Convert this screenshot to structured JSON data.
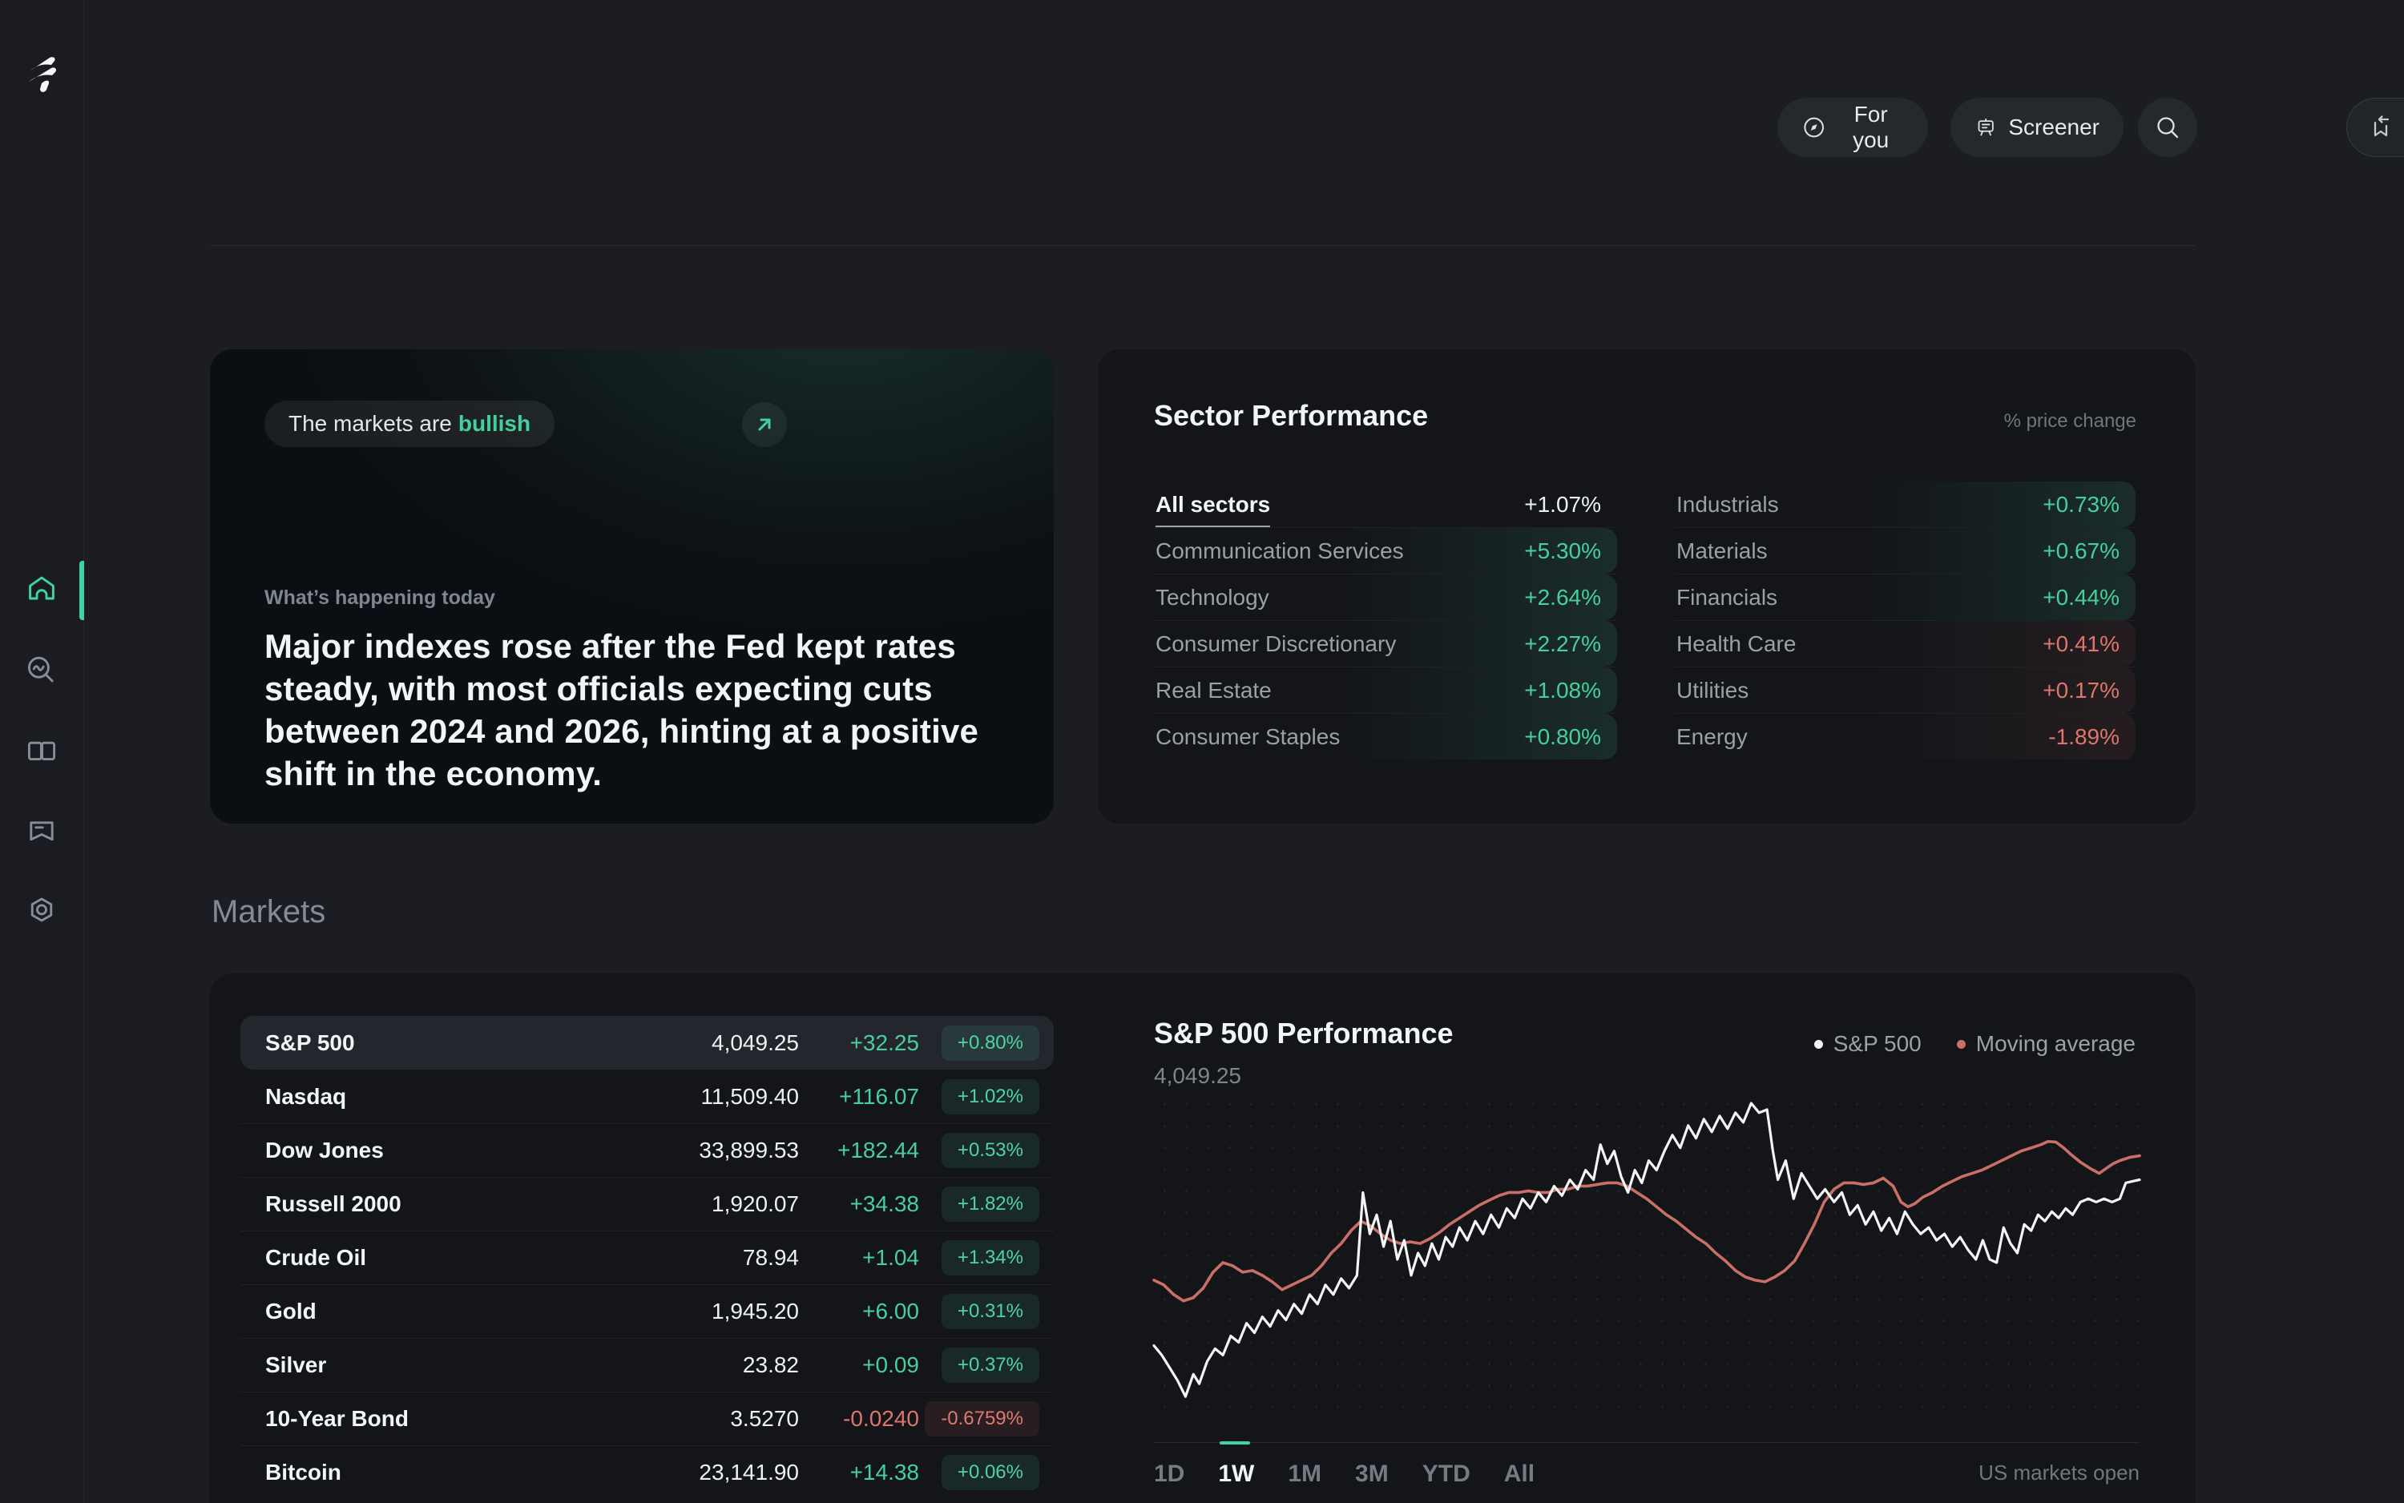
{
  "colors": {
    "green": "#46cf9f",
    "red": "#de756c",
    "accent_bar": "#3ed6a0",
    "sp500_line": "#f2f4f6",
    "moving_avg_line": "#c96f66",
    "page_bg": "#1b1d22",
    "card_bg": "#131519"
  },
  "icons": [
    "brand-logo",
    "home-icon",
    "explore-icon",
    "book-icon",
    "flag-icon",
    "nut-icon",
    "compass-icon",
    "screener-board-icon",
    "search-icon",
    "bookmark-arrow-icon",
    "arrow-up-right-icon"
  ],
  "header": {
    "for_you": "For you",
    "screener": "Screener"
  },
  "hero": {
    "pill_prefix": "The markets are",
    "pill_highlight": "bullish",
    "kicker": "What’s happening today",
    "headline_lines": [
      "Major indexes rose after the Fed kept rates steady,",
      "with most officials expecting cuts between 2024",
      "and 2026, hinting at a positive shift in the economy."
    ]
  },
  "sector_performance": {
    "title": "Sector Performance",
    "note": "% price change",
    "all": {
      "label": "All sectors",
      "value": "+1.07%",
      "color": "white"
    },
    "left": [
      {
        "label": "Communication Services",
        "value": "+5.30%",
        "color": "green"
      },
      {
        "label": "Technology",
        "value": "+2.64%",
        "color": "green"
      },
      {
        "label": "Consumer Discretionary",
        "value": "+2.27%",
        "color": "green"
      },
      {
        "label": "Real Estate",
        "value": "+1.08%",
        "color": "green"
      },
      {
        "label": "Consumer Staples",
        "value": "+0.80%",
        "color": "green"
      }
    ],
    "right": [
      {
        "label": "Industrials",
        "value": "+0.73%",
        "color": "green"
      },
      {
        "label": "Materials",
        "value": "+0.67%",
        "color": "green"
      },
      {
        "label": "Financials",
        "value": "+0.44%",
        "color": "green"
      },
      {
        "label": "Health Care",
        "value": "+0.41%",
        "color": "red"
      },
      {
        "label": "Utilities",
        "value": "+0.17%",
        "color": "red"
      },
      {
        "label": "Energy",
        "value": "-1.89%",
        "color": "red"
      }
    ]
  },
  "markets": {
    "title": "Markets",
    "rows": [
      {
        "name": "S&P 500",
        "value": "4,049.25",
        "change": "+32.25",
        "badge": "+0.80%",
        "color": "green",
        "selected": true
      },
      {
        "name": "Nasdaq",
        "value": "11,509.40",
        "change": "+116.07",
        "badge": "+1.02%",
        "color": "green",
        "selected": false
      },
      {
        "name": "Dow Jones",
        "value": "33,899.53",
        "change": "+182.44",
        "badge": "+0.53%",
        "color": "green",
        "selected": false
      },
      {
        "name": "Russell 2000",
        "value": "1,920.07",
        "change": "+34.38",
        "badge": "+1.82%",
        "color": "green",
        "selected": false
      },
      {
        "name": "Crude Oil",
        "value": "78.94",
        "change": "+1.04",
        "badge": "+1.34%",
        "color": "green",
        "selected": false
      },
      {
        "name": "Gold",
        "value": "1,945.20",
        "change": "+6.00",
        "badge": "+0.31%",
        "color": "green",
        "selected": false
      },
      {
        "name": "Silver",
        "value": "23.82",
        "change": "+0.09",
        "badge": "+0.37%",
        "color": "green",
        "selected": false
      },
      {
        "name": "10-Year Bond",
        "value": "3.5270",
        "change": "-0.0240",
        "badge": "-0.6759%",
        "color": "red",
        "selected": false
      },
      {
        "name": "Bitcoin",
        "value": "23,141.90",
        "change": "+14.38",
        "badge": "+0.06%",
        "color": "green",
        "selected": false
      }
    ]
  },
  "chart": {
    "title": "S&P 500 Performance",
    "value": "4,049.25",
    "legend": [
      {
        "label": "S&P 500",
        "color": "#f2f4f6"
      },
      {
        "label": "Moving average",
        "color": "#c97168"
      }
    ],
    "ranges": [
      "1D",
      "1W",
      "1M",
      "3M",
      "YTD",
      "All"
    ],
    "active_range": "1W",
    "status": "US markets open"
  },
  "chart_data": {
    "type": "line",
    "title": "S&P 500 Performance",
    "current_value": 4049.25,
    "x_axis": "time (1W range)",
    "y_axis": "index level (unlabeled)",
    "grid": "dotted",
    "legend_position": "top-right",
    "series": [
      {
        "name": "Moving average",
        "color": "#c96f66",
        "width": 3.6,
        "points": [
          [
            0,
            58.5
          ],
          [
            1,
            60
          ],
          [
            2,
            63
          ],
          [
            3,
            65
          ],
          [
            4,
            64
          ],
          [
            5,
            61
          ],
          [
            6,
            56
          ],
          [
            7,
            53
          ],
          [
            8,
            54
          ],
          [
            9,
            56
          ],
          [
            10,
            55.5
          ],
          [
            11,
            57
          ],
          [
            12,
            59
          ],
          [
            13,
            61.5
          ],
          [
            14,
            60
          ],
          [
            15,
            58.5
          ],
          [
            16,
            57
          ],
          [
            17,
            54
          ],
          [
            18,
            50
          ],
          [
            19,
            47
          ],
          [
            20,
            43
          ],
          [
            21,
            40
          ],
          [
            22,
            41.5
          ],
          [
            23,
            44
          ],
          [
            24,
            46
          ],
          [
            25,
            47
          ],
          [
            26,
            46.5
          ],
          [
            27,
            47
          ],
          [
            28,
            45.5
          ],
          [
            29,
            43.5
          ],
          [
            30,
            41
          ],
          [
            31,
            39
          ],
          [
            32,
            37
          ],
          [
            33,
            35
          ],
          [
            34,
            33.5
          ],
          [
            35,
            32
          ],
          [
            36,
            31
          ],
          [
            37,
            31
          ],
          [
            38,
            30.5
          ],
          [
            39,
            31
          ],
          [
            40,
            31
          ],
          [
            41,
            30
          ],
          [
            42,
            30
          ],
          [
            43,
            29
          ],
          [
            44,
            29
          ],
          [
            45,
            28.5
          ],
          [
            46,
            28
          ],
          [
            47,
            28
          ],
          [
            48,
            29
          ],
          [
            49,
            31
          ],
          [
            50,
            33
          ],
          [
            51,
            35.5
          ],
          [
            52,
            38
          ],
          [
            53,
            40
          ],
          [
            54,
            42.5
          ],
          [
            55,
            45
          ],
          [
            56,
            47
          ],
          [
            57,
            50
          ],
          [
            58,
            52.5
          ],
          [
            59,
            55.5
          ],
          [
            60,
            57.5
          ],
          [
            61,
            58.5
          ],
          [
            62,
            59
          ],
          [
            63,
            57.5
          ],
          [
            64,
            55.5
          ],
          [
            65,
            52.5
          ],
          [
            66,
            47
          ],
          [
            67,
            41
          ],
          [
            68,
            34
          ],
          [
            69,
            30
          ],
          [
            70,
            28
          ],
          [
            71,
            28
          ],
          [
            72,
            28.5
          ],
          [
            73,
            28
          ],
          [
            74,
            26.5
          ],
          [
            75,
            29
          ],
          [
            75.8,
            34
          ],
          [
            76.5,
            35.5
          ],
          [
            77.2,
            34.5
          ],
          [
            78,
            32.5
          ],
          [
            79,
            31
          ],
          [
            80,
            29
          ],
          [
            81,
            27.5
          ],
          [
            82,
            26
          ],
          [
            83,
            25
          ],
          [
            84,
            24
          ],
          [
            85,
            22.5
          ],
          [
            86,
            21
          ],
          [
            87,
            19.5
          ],
          [
            88,
            18
          ],
          [
            89,
            17
          ],
          [
            90,
            16
          ],
          [
            90.7,
            15
          ],
          [
            91.5,
            15.2
          ],
          [
            92.3,
            17
          ],
          [
            93,
            19
          ],
          [
            94,
            21.5
          ],
          [
            95,
            23.5
          ],
          [
            95.9,
            25
          ],
          [
            96.6,
            23.5
          ],
          [
            97.3,
            22
          ],
          [
            98,
            21
          ],
          [
            99,
            20
          ],
          [
            100,
            19.5
          ]
        ]
      },
      {
        "name": "S&P 500",
        "color": "#f2f4f6",
        "width": 3.2,
        "points": [
          [
            0,
            79
          ],
          [
            0.8,
            82
          ],
          [
            1.6,
            86
          ],
          [
            2.4,
            90
          ],
          [
            3.2,
            95
          ],
          [
            4,
            88
          ],
          [
            4.6,
            91
          ],
          [
            5.4,
            84
          ],
          [
            6.2,
            80
          ],
          [
            7,
            82
          ],
          [
            7.8,
            76
          ],
          [
            8.6,
            78
          ],
          [
            9.4,
            72
          ],
          [
            10.2,
            75
          ],
          [
            11,
            70
          ],
          [
            11.8,
            73
          ],
          [
            12.6,
            68
          ],
          [
            13.4,
            71
          ],
          [
            14.2,
            66
          ],
          [
            15,
            69
          ],
          [
            15.8,
            63
          ],
          [
            16.6,
            66
          ],
          [
            17.4,
            60
          ],
          [
            18.2,
            63
          ],
          [
            19,
            58
          ],
          [
            19.8,
            61
          ],
          [
            20.6,
            57
          ],
          [
            21.2,
            31
          ],
          [
            21.9,
            44
          ],
          [
            22.6,
            38
          ],
          [
            23.3,
            48
          ],
          [
            24,
            40
          ],
          [
            24.7,
            52
          ],
          [
            25.4,
            46
          ],
          [
            26.1,
            57
          ],
          [
            26.8,
            50
          ],
          [
            27.5,
            54
          ],
          [
            28.2,
            47
          ],
          [
            28.9,
            52
          ],
          [
            29.6,
            45
          ],
          [
            30.3,
            48
          ],
          [
            31,
            42
          ],
          [
            31.8,
            46
          ],
          [
            32.6,
            40
          ],
          [
            33.4,
            44
          ],
          [
            34.2,
            38
          ],
          [
            35,
            42
          ],
          [
            35.8,
            36
          ],
          [
            36.6,
            39
          ],
          [
            37.4,
            33
          ],
          [
            38.2,
            36
          ],
          [
            39,
            31
          ],
          [
            39.8,
            34
          ],
          [
            40.6,
            29
          ],
          [
            41.4,
            32
          ],
          [
            42.2,
            27
          ],
          [
            43,
            30
          ],
          [
            43.8,
            24
          ],
          [
            44.6,
            27
          ],
          [
            45.3,
            16
          ],
          [
            46,
            22
          ],
          [
            46.7,
            18
          ],
          [
            47.4,
            26
          ],
          [
            48.1,
            31
          ],
          [
            48.8,
            24
          ],
          [
            49.5,
            28
          ],
          [
            50.2,
            21
          ],
          [
            51,
            24
          ],
          [
            51.8,
            18
          ],
          [
            52.6,
            13
          ],
          [
            53.4,
            17
          ],
          [
            54.2,
            10
          ],
          [
            55,
            14
          ],
          [
            55.8,
            8
          ],
          [
            56.6,
            12
          ],
          [
            57.4,
            7
          ],
          [
            58.2,
            11
          ],
          [
            59,
            6
          ],
          [
            59.8,
            9
          ],
          [
            60.6,
            3
          ],
          [
            61.4,
            6
          ],
          [
            62.2,
            5
          ],
          [
            62.8,
            18
          ],
          [
            63.3,
            27
          ],
          [
            64.1,
            21
          ],
          [
            64.9,
            33
          ],
          [
            65.7,
            25
          ],
          [
            66.5,
            29
          ],
          [
            67.3,
            33
          ],
          [
            68.1,
            30
          ],
          [
            69,
            34
          ],
          [
            69.8,
            31
          ],
          [
            70.6,
            38
          ],
          [
            71.4,
            35
          ],
          [
            72.2,
            41
          ],
          [
            73,
            37
          ],
          [
            73.8,
            43
          ],
          [
            74.6,
            39
          ],
          [
            75.4,
            44
          ],
          [
            76.2,
            37
          ],
          [
            77,
            41
          ],
          [
            77.8,
            44
          ],
          [
            78.6,
            42
          ],
          [
            79.4,
            46
          ],
          [
            80.2,
            44
          ],
          [
            81,
            48
          ],
          [
            81.8,
            45
          ],
          [
            82.6,
            49
          ],
          [
            83.4,
            52
          ],
          [
            84.1,
            46
          ],
          [
            84.8,
            52
          ],
          [
            85.5,
            53
          ],
          [
            86.2,
            42
          ],
          [
            86.9,
            47
          ],
          [
            87.6,
            50
          ],
          [
            88.3,
            41
          ],
          [
            89,
            43
          ],
          [
            89.7,
            38
          ],
          [
            90.4,
            40
          ],
          [
            91.1,
            37
          ],
          [
            91.8,
            39
          ],
          [
            92.5,
            36
          ],
          [
            93.2,
            38
          ],
          [
            94,
            34
          ],
          [
            94.8,
            33
          ],
          [
            95.6,
            34
          ],
          [
            96.4,
            33
          ],
          [
            97.2,
            34
          ],
          [
            98,
            33
          ],
          [
            98.6,
            28
          ],
          [
            99.3,
            27.5
          ],
          [
            100,
            27
          ]
        ]
      }
    ]
  }
}
